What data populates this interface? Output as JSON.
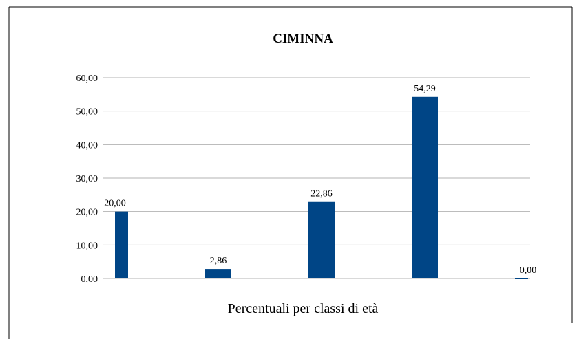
{
  "chart_data": {
    "type": "bar",
    "title": "CIMINNA",
    "xlabel": "Percentuali per classi di età",
    "categories": [
      null,
      null,
      null,
      null,
      null
    ],
    "values": [
      20,
      2.86,
      22.86,
      54.29,
      0
    ],
    "value_labels": [
      "20,00",
      "2,86",
      "22,86",
      "54,29",
      "0,00"
    ],
    "color": "#004586",
    "ylim": [
      0,
      60
    ],
    "yticks": [
      {
        "value": 0,
        "label": "0,00"
      },
      {
        "value": 10,
        "label": "10,00"
      },
      {
        "value": 20,
        "label": "20,00"
      },
      {
        "value": 30,
        "label": "30,00"
      },
      {
        "value": 40,
        "label": "40,00"
      },
      {
        "value": 50,
        "label": "50,00"
      },
      {
        "value": 60,
        "label": "60,00"
      }
    ],
    "grid": true
  }
}
